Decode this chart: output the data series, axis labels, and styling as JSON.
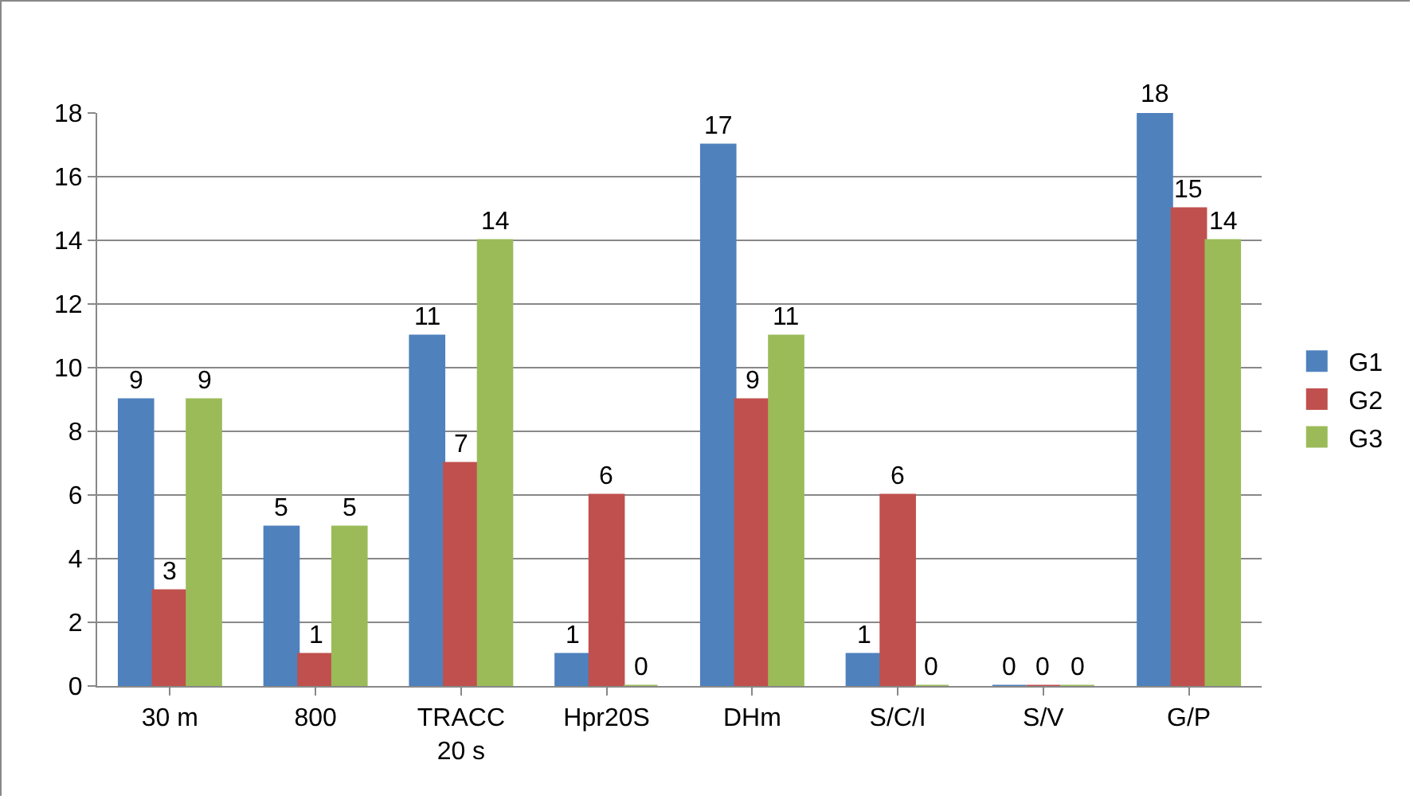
{
  "chart_data": {
    "type": "bar",
    "categories": [
      "30 m",
      "800",
      "TRACC 20 s",
      "Hpr20S",
      "DHm",
      "S/C/I",
      "S/V",
      "G/P"
    ],
    "series": [
      {
        "name": "G1",
        "color": "#4f81bd",
        "values": [
          9,
          5,
          11,
          1,
          17,
          1,
          0,
          18
        ]
      },
      {
        "name": "G2",
        "color": "#c0504d",
        "values": [
          3,
          1,
          7,
          6,
          9,
          6,
          0,
          15
        ]
      },
      {
        "name": "G3",
        "color": "#9bbb59",
        "values": [
          9,
          5,
          14,
          0,
          11,
          0,
          0,
          14
        ]
      }
    ],
    "ylim": [
      0,
      18
    ],
    "yticks": [
      0,
      2,
      4,
      6,
      8,
      10,
      12,
      14,
      16,
      18
    ],
    "grid": "y",
    "legend": "right",
    "data_labels": true
  }
}
